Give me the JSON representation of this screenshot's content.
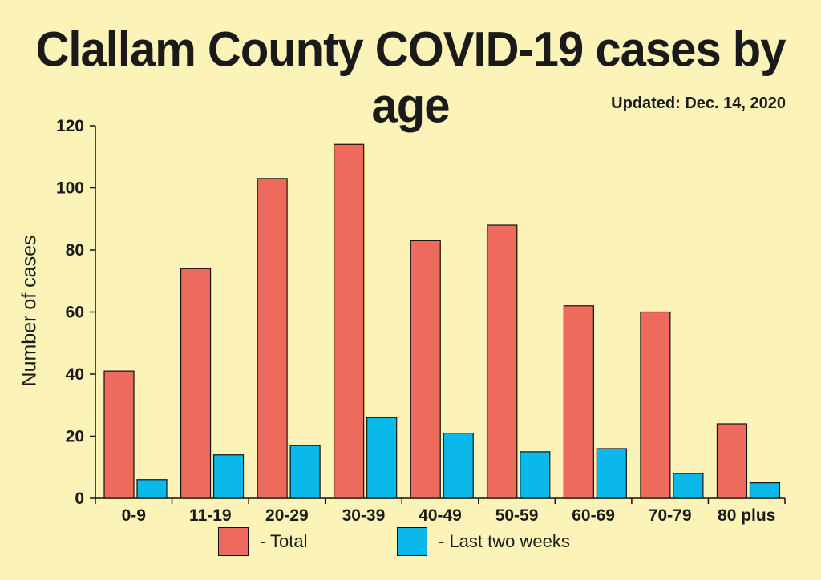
{
  "title": "Clallam County COVID-19 cases by age",
  "updated": "Updated: Dec. 14, 2020",
  "colors": {
    "total": "#ee6a5c",
    "recent": "#0ab8ea",
    "background": "#fbf3b8"
  },
  "legend": {
    "total": "- Total",
    "recent": "- Last two weeks"
  },
  "chart_data": {
    "type": "bar",
    "title": "Clallam County COVID-19 cases by age",
    "xlabel": "",
    "ylabel": "Number of cases",
    "ylim": [
      0,
      120
    ],
    "yticks": [
      0,
      20,
      40,
      60,
      80,
      100,
      120
    ],
    "categories": [
      "0-9",
      "11-19",
      "20-29",
      "30-39",
      "40-49",
      "50-59",
      "60-69",
      "70-79",
      "80 plus"
    ],
    "series": [
      {
        "name": "Total",
        "values": [
          41,
          74,
          103,
          114,
          83,
          88,
          62,
          60,
          24
        ]
      },
      {
        "name": "Last two weeks",
        "values": [
          6,
          14,
          17,
          26,
          21,
          15,
          16,
          8,
          5
        ]
      }
    ],
    "legend_position": "bottom"
  }
}
